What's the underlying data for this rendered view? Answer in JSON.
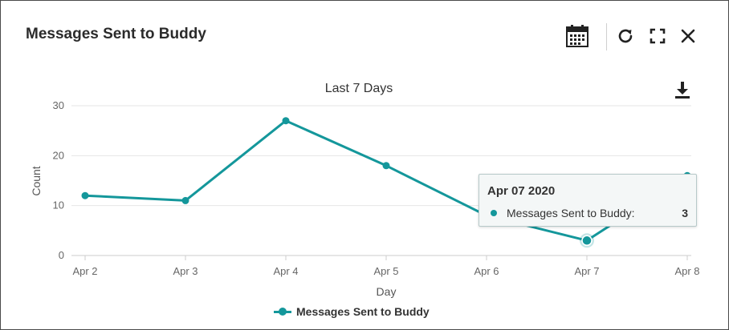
{
  "panel": {
    "title": "Messages Sent to Buddy"
  },
  "toolbar": {
    "icons": [
      "calendar-icon",
      "refresh-icon",
      "fullscreen-icon",
      "close-icon"
    ]
  },
  "colors": {
    "series": "#14979b",
    "grid": "#e6e6e6",
    "axis": "#cccccc"
  },
  "chart_data": {
    "type": "line",
    "title": "Last 7 Days",
    "xlabel": "Day",
    "ylabel": "Count",
    "categories": [
      "Apr 2",
      "Apr 3",
      "Apr 4",
      "Apr 5",
      "Apr 6",
      "Apr 7",
      "Apr 8"
    ],
    "series": [
      {
        "name": "Messages Sent to Buddy",
        "values": [
          12,
          11,
          27,
          18,
          8,
          3,
          16
        ]
      }
    ],
    "ylim": [
      0,
      30
    ],
    "yticks": [
      0,
      10,
      20,
      30
    ],
    "grid": true,
    "legend": "bottom-center"
  },
  "tooltip": {
    "date": "Apr 07 2020",
    "series_label": "Messages Sent to Buddy:",
    "value": "3",
    "category_index": 5
  },
  "download": {
    "icon": "download-icon"
  }
}
